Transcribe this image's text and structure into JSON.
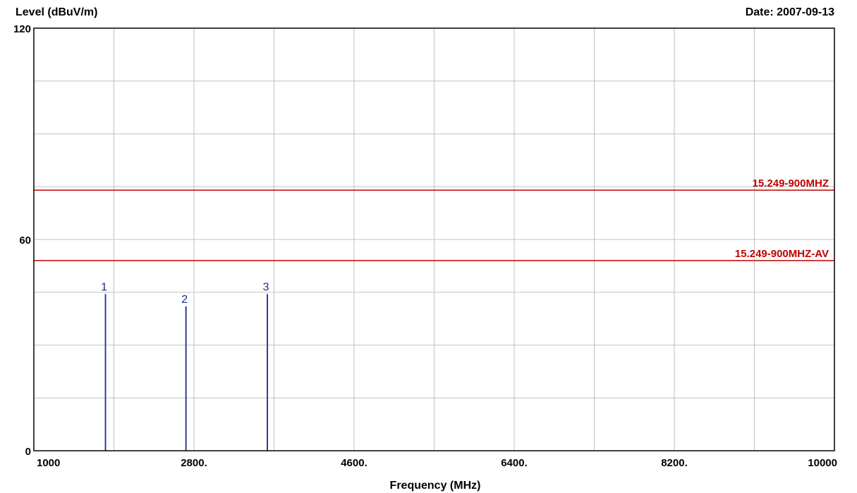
{
  "header": {
    "ylabel": "Level (dBuV/m)",
    "date": "Date: 2007-09-13"
  },
  "chart_data": {
    "type": "line",
    "title": "",
    "xlabel": "Frequency (MHz)",
    "ylabel": "Level (dBuV/m)",
    "xlim": [
      1000,
      10000
    ],
    "ylim": [
      0,
      120
    ],
    "grid": true,
    "x_tick_values": [
      1000,
      1900,
      2800,
      3700,
      4600,
      5500,
      6400,
      7300,
      8200,
      9100,
      10000
    ],
    "x_tick_labels": [
      {
        "value": 1000,
        "label": "1000"
      },
      {
        "value": 2800,
        "label": "2800."
      },
      {
        "value": 4600,
        "label": "4600."
      },
      {
        "value": 6400,
        "label": "6400."
      },
      {
        "value": 8200,
        "label": "8200."
      },
      {
        "value": 10000,
        "label": "10000"
      }
    ],
    "y_tick_values": [
      0,
      15,
      30,
      45,
      60,
      75,
      90,
      105,
      120
    ],
    "y_tick_labels": [
      {
        "value": 0,
        "label": "0"
      },
      {
        "value": 60,
        "label": "60"
      },
      {
        "value": 120,
        "label": "120"
      }
    ],
    "limit_lines": [
      {
        "name": "15.249-900MHZ",
        "value": 74,
        "color": "#c00000"
      },
      {
        "name": "15.249-900MHZ-AV",
        "value": 54,
        "color": "#c00000"
      }
    ],
    "markers": [
      {
        "label": "1",
        "x": 1805,
        "y": 44.5
      },
      {
        "label": "2",
        "x": 2710,
        "y": 41
      },
      {
        "label": "3",
        "x": 3625,
        "y": 44.5
      }
    ],
    "marker_color": "#1a2a8c",
    "grid_color": "#c0c0c0"
  }
}
